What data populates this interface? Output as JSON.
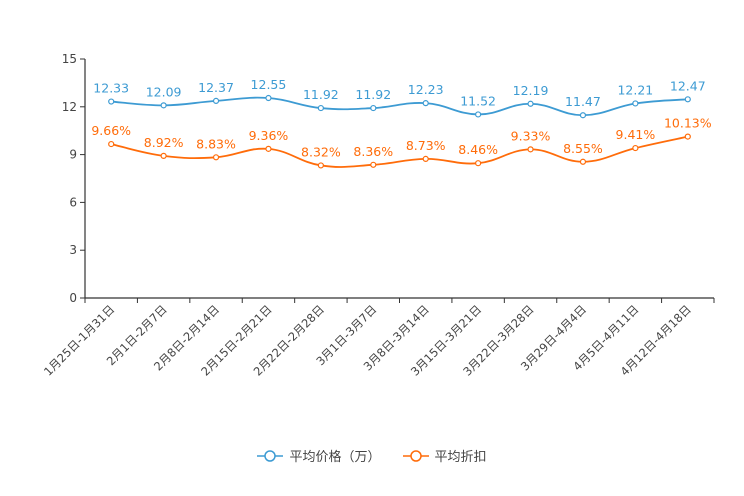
{
  "chart_data": {
    "type": "line",
    "title": "",
    "xlabel": "",
    "ylabel": "",
    "ylim": [
      0,
      15
    ],
    "yticks": [
      0,
      3,
      6,
      9,
      12,
      15
    ],
    "grid": false,
    "legend_position": "bottom",
    "categories": [
      "1月25日-1月31日",
      "2月1日-2月7日",
      "2月8日-2月14日",
      "2月15日-2月21日",
      "2月22日-2月28日",
      "3月1日-3月7日",
      "3月8日-3月14日",
      "3月15日-3月21日",
      "3月22日-3月28日",
      "3月29日-4月4日",
      "4月5日-4月11日",
      "4月12日-4月18日"
    ],
    "series": [
      {
        "name": "平均价格（万）",
        "color": "#3d9bd3",
        "values": [
          12.33,
          12.09,
          12.37,
          12.55,
          11.92,
          11.92,
          12.23,
          11.52,
          12.19,
          11.47,
          12.21,
          12.47
        ],
        "labels": [
          "12.33",
          "12.09",
          "12.37",
          "12.55",
          "11.92",
          "11.92",
          "12.23",
          "11.52",
          "12.19",
          "11.47",
          "12.21",
          "12.47"
        ]
      },
      {
        "name": "平均折扣",
        "color": "#ff6c0a",
        "values": [
          9.66,
          8.92,
          8.83,
          9.36,
          8.32,
          8.36,
          8.73,
          8.46,
          9.33,
          8.55,
          9.41,
          10.13
        ],
        "labels": [
          "9.66%",
          "8.92%",
          "8.83%",
          "9.36%",
          "8.32%",
          "8.36%",
          "8.73%",
          "8.46%",
          "9.33%",
          "8.55%",
          "9.41%",
          "10.13%"
        ]
      }
    ]
  }
}
